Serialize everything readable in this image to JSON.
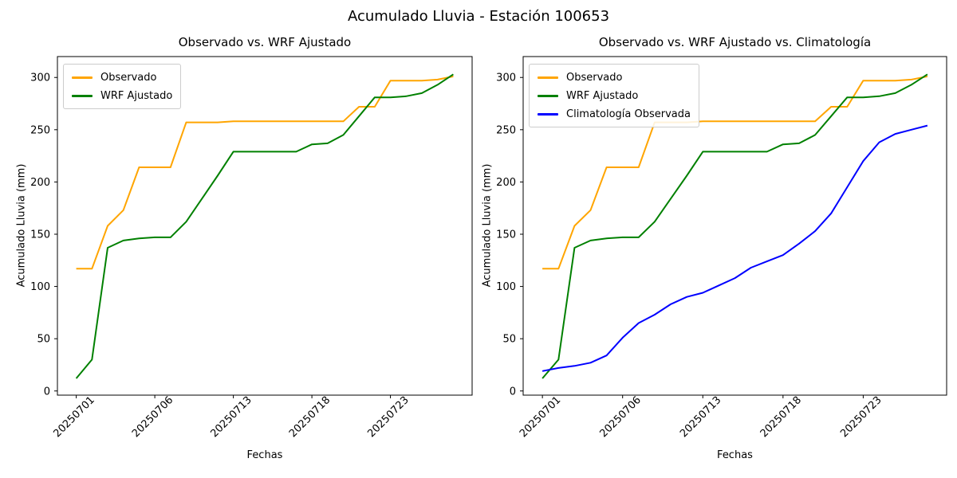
{
  "figure": {
    "title": "Acumulado Lluvia - Estación 100653",
    "background": "#ffffff",
    "text_color": "#000000"
  },
  "chart_data": [
    {
      "type": "line",
      "title": "Observado vs. WRF Ajustado",
      "xlabel": "Fechas",
      "ylabel": "Acumulado Lluvia (mm)",
      "x_tick_labels": [
        "20250701",
        "20250706",
        "20250713",
        "20250718",
        "20250723"
      ],
      "x_tick_positions": [
        0,
        5,
        10,
        15,
        20
      ],
      "y_ticks": [
        0,
        50,
        100,
        150,
        200,
        250,
        300
      ],
      "ylim": [
        -4,
        320
      ],
      "grid": false,
      "legend_position": "upper left",
      "series": [
        {
          "name": "Observado",
          "color": "#ffa500",
          "values": [
            117,
            117,
            158,
            173,
            214,
            214,
            214,
            257,
            257,
            257,
            258,
            258,
            258,
            258,
            258,
            258,
            258,
            258,
            272,
            272,
            297,
            297,
            297,
            298,
            301
          ]
        },
        {
          "name": "WRF Ajustado",
          "color": "#008000",
          "values": [
            12,
            30,
            137,
            144,
            146,
            147,
            147,
            162,
            184,
            206,
            229,
            229,
            229,
            229,
            229,
            236,
            237,
            245,
            263,
            281,
            281,
            282,
            285,
            293,
            303
          ]
        }
      ]
    },
    {
      "type": "line",
      "title": "Observado vs. WRF Ajustado vs. Climatología",
      "xlabel": "Fechas",
      "ylabel": "Acumulado Lluvia (mm)",
      "x_tick_labels": [
        "20250701",
        "20250706",
        "20250713",
        "20250718",
        "20250723"
      ],
      "x_tick_positions": [
        0,
        5,
        10,
        15,
        20
      ],
      "y_ticks": [
        0,
        50,
        100,
        150,
        200,
        250,
        300
      ],
      "ylim": [
        -4,
        320
      ],
      "grid": false,
      "legend_position": "upper left",
      "series": [
        {
          "name": "Observado",
          "color": "#ffa500",
          "values": [
            117,
            117,
            158,
            173,
            214,
            214,
            214,
            257,
            257,
            257,
            258,
            258,
            258,
            258,
            258,
            258,
            258,
            258,
            272,
            272,
            297,
            297,
            297,
            298,
            301
          ]
        },
        {
          "name": "WRF Ajustado",
          "color": "#008000",
          "values": [
            12,
            30,
            137,
            144,
            146,
            147,
            147,
            162,
            184,
            206,
            229,
            229,
            229,
            229,
            229,
            236,
            237,
            245,
            263,
            281,
            281,
            282,
            285,
            293,
            303
          ]
        },
        {
          "name": "Climatología Observada",
          "color": "#0000ff",
          "values": [
            19,
            22,
            24,
            27,
            34,
            51,
            65,
            73,
            83,
            90,
            94,
            101,
            108,
            118,
            124,
            130,
            141,
            153,
            170,
            195,
            220,
            238,
            246,
            250,
            254
          ]
        }
      ]
    }
  ]
}
